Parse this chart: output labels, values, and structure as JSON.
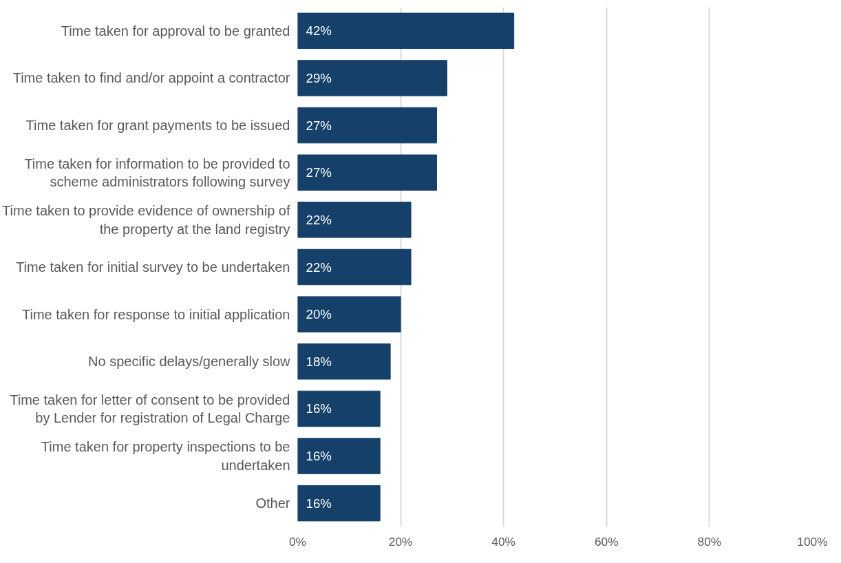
{
  "chart_data": {
    "type": "bar",
    "orientation": "horizontal",
    "categories": [
      "Time taken for approval to be granted",
      "Time taken to find and/or appoint a contractor",
      "Time taken for grant payments to be issued",
      "Time taken for information to be provided to scheme administrators following survey",
      "Time taken to provide evidence of ownership of the property at the land registry",
      "Time taken for initial survey to be undertaken",
      "Time taken for response to initial application",
      "No specific delays/generally slow",
      "Time taken for letter of consent to be provided by Lender for registration of Legal Charge",
      "Time taken for property inspections to be undertaken",
      "Other"
    ],
    "values": [
      42,
      29,
      27,
      27,
      22,
      22,
      20,
      18,
      16,
      16,
      16
    ],
    "value_labels": [
      "42%",
      "29%",
      "27%",
      "27%",
      "22%",
      "22%",
      "20%",
      "18%",
      "16%",
      "16%",
      "16%"
    ],
    "color": "#14406a",
    "xlim": [
      0,
      100
    ],
    "xticks": [
      {
        "value": 0,
        "label": "0%"
      },
      {
        "value": 20,
        "label": "20%"
      },
      {
        "value": 40,
        "label": "40%"
      },
      {
        "value": 60,
        "label": "60%"
      },
      {
        "value": 80,
        "label": "80%"
      },
      {
        "value": 100,
        "label": "100%"
      }
    ],
    "grid": "x"
  }
}
